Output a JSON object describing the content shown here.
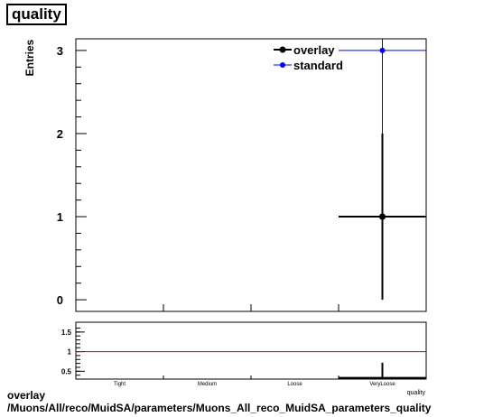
{
  "title": "quality",
  "footer": {
    "line1": "overlay",
    "line2": "/Muons/All/reco/MuidSA/parameters/Muons_All_reco_MuidSA_parameters_quality"
  },
  "chart_data": [
    {
      "type": "scatter",
      "title": "quality",
      "xlabel": "quality",
      "ylabel": "Entries",
      "categories": [
        "Tight",
        "Medium",
        "Loose",
        "VeryLoose"
      ],
      "ylim": [
        -0.14,
        3.14
      ],
      "yticks": [
        0,
        1,
        2,
        3
      ],
      "ytick_labels": [
        "0",
        "1",
        "2",
        "3"
      ],
      "legend_position": "top-right",
      "series": [
        {
          "name": "overlay",
          "color": "#000000",
          "values": [
            0,
            0,
            0,
            1
          ],
          "errors": [
            0,
            0,
            0,
            1
          ]
        },
        {
          "name": "standard",
          "color": "#0000ff",
          "values": [
            0,
            0,
            0,
            3
          ],
          "errors": [
            0,
            0,
            0,
            1.732
          ]
        }
      ]
    },
    {
      "type": "scatter",
      "categories": [
        "Tight",
        "Medium",
        "Loose",
        "VeryLoose"
      ],
      "ylim": [
        0.3,
        1.75
      ],
      "yticks": [
        0.5,
        1,
        1.5
      ],
      "ytick_labels": [
        "0.5",
        "1",
        "1.5"
      ],
      "reference_line": 1,
      "reference_color": "#cc0000",
      "series": [
        {
          "color": "#000000",
          "values": [
            null,
            null,
            null,
            0.333
          ],
          "errors": [
            0,
            0,
            0,
            0.385
          ]
        }
      ]
    }
  ]
}
